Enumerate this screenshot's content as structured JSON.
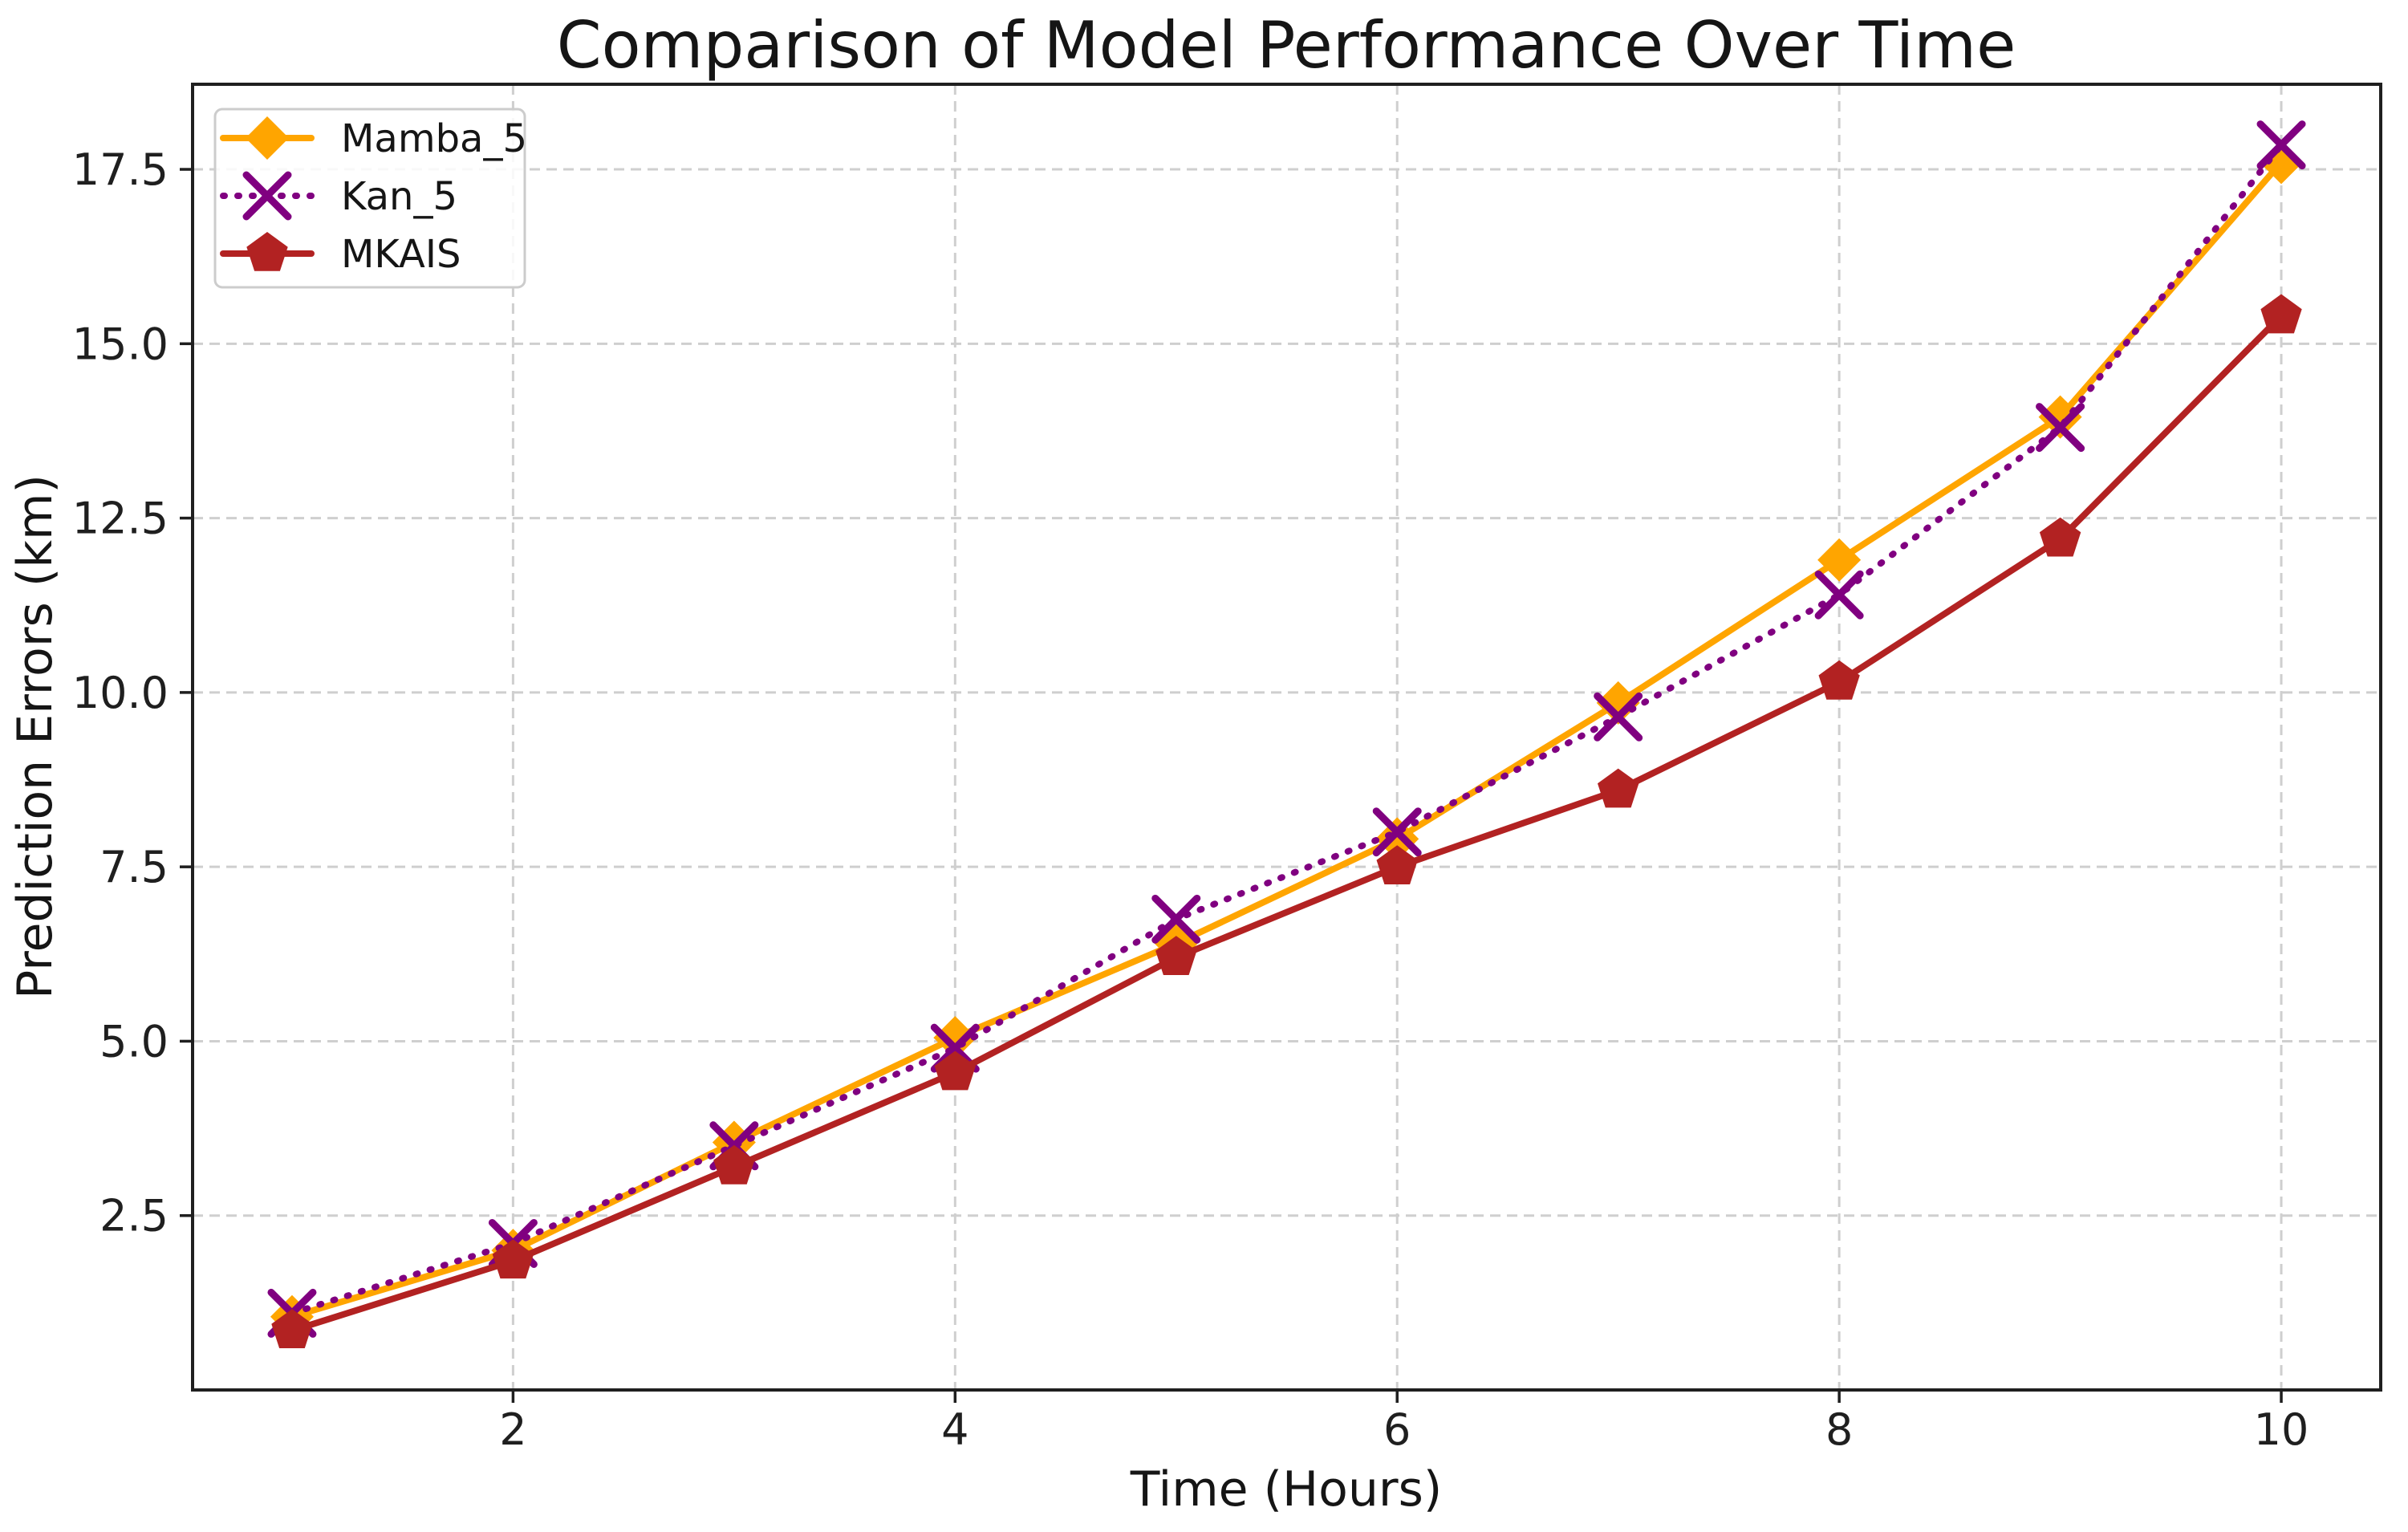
{
  "chart_data": {
    "type": "line",
    "title": "Comparison of Model Performance Over Time",
    "xlabel": "Time (Hours)",
    "ylabel": "Prediction Errors (km)",
    "x": [
      1,
      2,
      3,
      4,
      5,
      6,
      7,
      8,
      9,
      10
    ],
    "series": [
      {
        "name": "Mamba_5",
        "color": "#FFA500",
        "marker": "diamond",
        "linestyle": "solid",
        "values": [
          1.05,
          2.0,
          3.55,
          5.05,
          6.4,
          7.9,
          9.85,
          11.9,
          13.95,
          17.6
        ]
      },
      {
        "name": "Kan_5",
        "color": "#800080",
        "marker": "x",
        "linestyle": "dotted",
        "values": [
          1.1,
          2.1,
          3.5,
          4.9,
          6.75,
          8.0,
          9.65,
          11.4,
          13.8,
          17.85
        ]
      },
      {
        "name": "MKAIS",
        "color": "#B22222",
        "marker": "pentagon",
        "linestyle": "solid",
        "values": [
          0.85,
          1.85,
          3.2,
          4.55,
          6.2,
          7.5,
          8.6,
          10.15,
          12.2,
          15.4
        ]
      }
    ],
    "xlim": [
      0.55,
      10.45
    ],
    "ylim": [
      0.0,
      18.72
    ],
    "xticks": {
      "values": [
        2,
        4,
        6,
        8,
        10
      ],
      "labels": [
        "2",
        "4",
        "6",
        "8",
        "10"
      ]
    },
    "yticks": {
      "values": [
        2.5,
        5.0,
        7.5,
        10.0,
        12.5,
        15.0,
        17.5
      ],
      "labels": [
        "2.5",
        "5.0",
        "7.5",
        "10.0",
        "12.5",
        "15.0",
        "17.5"
      ]
    },
    "grid": {
      "visible": true,
      "style": "dashed",
      "color": "#cfcfcf"
    },
    "legend": {
      "position": "upper left",
      "entries": [
        "Mamba_5",
        "Kan_5",
        "MKAIS"
      ]
    }
  }
}
